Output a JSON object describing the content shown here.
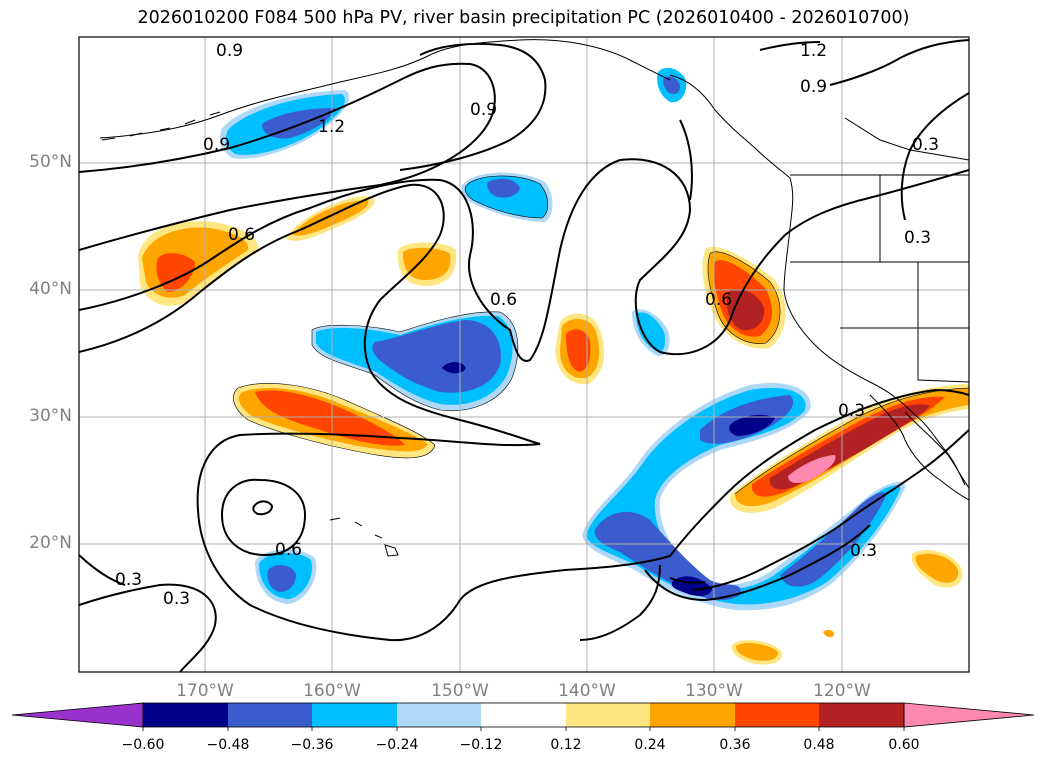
{
  "title": "2026010200 F084 500 hPa PV, river basin precipitation PC (2026010400 - 2026010700)",
  "lat_labels": [
    "50°N",
    "40°N",
    "30°N",
    "20°N"
  ],
  "lon_labels": [
    "170°W",
    "160°W",
    "150°W",
    "140°W",
    "130°W",
    "120°W"
  ],
  "contour_labels": [
    "0.9",
    "0.9",
    "1.2",
    "0.9",
    "1.2",
    "0.9",
    "0.3",
    "0.6",
    "0.6",
    "0.6",
    "0.3",
    "0.3",
    "0.3",
    "0.6",
    "0.3",
    "0.3"
  ],
  "colorbar": {
    "ticks": [
      "−0.60",
      "−0.48",
      "−0.36",
      "−0.24",
      "−0.12",
      "0.12",
      "0.24",
      "0.36",
      "0.48",
      "0.60"
    ],
    "colors": [
      "#9932cc",
      "#00008b",
      "#3a5ccc",
      "#00bfff",
      "#add8f8",
      "#ffffff",
      "#ffe680",
      "#ffa500",
      "#ff4500",
      "#b22222",
      "#ff88b0"
    ]
  },
  "colors": {
    "cool_dark": "#00008b",
    "cool_mid": "#3a5ccc",
    "cool_light": "#00bfff",
    "cool_pale": "#add8f8",
    "warm_pale": "#ffe680",
    "warm_light": "#ffa500",
    "warm_mid": "#ff4500",
    "warm_dark": "#b22222",
    "warm_max": "#ff88b0",
    "grid": "#b0b0b0",
    "axis_label": "#808080"
  }
}
